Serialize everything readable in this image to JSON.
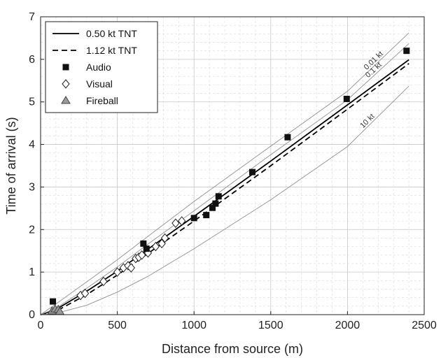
{
  "chart_data": {
    "type": "scatter",
    "title": "",
    "xlabel": "Distance from source (m)",
    "ylabel": "Time of arrival (s)",
    "xlim": [
      0,
      2500
    ],
    "ylim": [
      0,
      7
    ],
    "xticks": [
      0,
      500,
      1000,
      1500,
      2000,
      2500
    ],
    "yticks": [
      0,
      1,
      2,
      3,
      4,
      5,
      6,
      7
    ],
    "grid": "major solid, minor dashed",
    "legend_position": "top-left",
    "legend": [
      "0.50 kt TNT",
      "1.12 kt TNT",
      "Audio",
      "Visual",
      "Fireball"
    ],
    "curves": [
      {
        "name": "0.50 kt TNT",
        "style": "solid-black",
        "x": [
          0,
          100,
          300,
          500,
          700,
          1000,
          1500,
          2000,
          2400
        ],
        "y": [
          0,
          0.12,
          0.55,
          1.02,
          1.54,
          2.31,
          3.61,
          4.93,
          5.99
        ]
      },
      {
        "name": "1.12 kt TNT",
        "style": "dashed-black",
        "x": [
          0,
          100,
          300,
          500,
          700,
          1000,
          1500,
          2000,
          2400
        ],
        "y": [
          0,
          0.08,
          0.47,
          0.93,
          1.44,
          2.2,
          3.5,
          4.83,
          5.9
        ]
      },
      {
        "name": "0.01 kt",
        "style": "thin-gray",
        "label": "0.01 kt",
        "x": [
          0,
          100,
          300,
          500,
          700,
          1000,
          1500,
          2000,
          2400
        ],
        "y": [
          0,
          0.25,
          0.77,
          1.29,
          1.84,
          2.66,
          3.96,
          5.25,
          6.62
        ]
      },
      {
        "name": "0.1 kt",
        "style": "thin-gray",
        "label": "0.1 kt",
        "x": [
          0,
          100,
          300,
          500,
          700,
          1000,
          1500,
          2000,
          2400
        ],
        "y": [
          0,
          0.15,
          0.62,
          1.12,
          1.66,
          2.44,
          3.76,
          5.05,
          6.37
        ]
      },
      {
        "name": "10 kt",
        "style": "thin-gray",
        "label": "10 kt",
        "x": [
          0,
          100,
          300,
          500,
          700,
          1000,
          1500,
          2000,
          2400
        ],
        "y": [
          0,
          0.03,
          0.22,
          0.53,
          0.9,
          1.55,
          2.7,
          3.95,
          5.37
        ]
      }
    ],
    "series": [
      {
        "name": "Audio",
        "marker": "square",
        "color": "#111111",
        "x": [
          80,
          670,
          690,
          1000,
          1080,
          1120,
          1140,
          1160,
          1380,
          1610,
          1995,
          2385
        ],
        "y": [
          0.31,
          1.67,
          1.55,
          2.27,
          2.34,
          2.51,
          2.61,
          2.78,
          3.35,
          4.17,
          5.07,
          6.2
        ]
      },
      {
        "name": "Visual",
        "marker": "diamond",
        "color": "#ffffff",
        "x": [
          260,
          290,
          410,
          500,
          540,
          570,
          590,
          620,
          640,
          660,
          700,
          750,
          790,
          810,
          880,
          920
        ],
        "y": [
          0.45,
          0.5,
          0.78,
          1.0,
          1.1,
          1.15,
          1.1,
          1.32,
          1.35,
          1.4,
          1.45,
          1.6,
          1.67,
          1.8,
          2.15,
          2.2
        ]
      },
      {
        "name": "Fireball",
        "marker": "triangle",
        "color": "#999999",
        "x": [
          75,
          95,
          115,
          125
        ],
        "y": [
          0.08,
          0.13,
          0.12,
          0.07
        ]
      }
    ]
  }
}
